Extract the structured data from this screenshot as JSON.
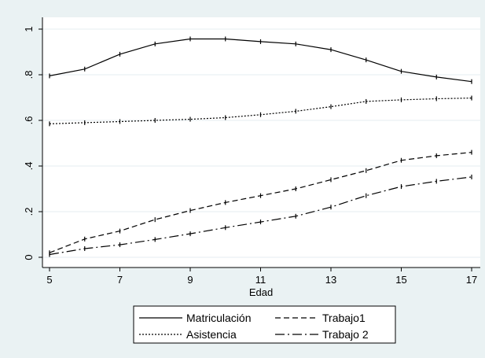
{
  "chart_data": {
    "type": "line",
    "title": "",
    "xlabel": "Edad",
    "ylabel": "",
    "xlim": [
      5,
      17
    ],
    "ylim": [
      0,
      1
    ],
    "x_ticks": [
      "5",
      "7",
      "9",
      "11",
      "13",
      "15",
      "17"
    ],
    "y_ticks": [
      "0",
      ".2",
      ".4",
      ".6",
      ".8",
      "1"
    ],
    "grid": "horizontal",
    "legend_position": "bottom",
    "x": [
      5,
      6,
      7,
      8,
      9,
      10,
      11,
      12,
      13,
      14,
      15,
      16,
      17
    ],
    "series": [
      {
        "name": "Matriculación",
        "dash": "solid",
        "values": [
          0.795,
          0.825,
          0.89,
          0.935,
          0.957,
          0.957,
          0.945,
          0.935,
          0.91,
          0.865,
          0.815,
          0.79,
          0.77
        ]
      },
      {
        "name": "Trabajo1",
        "dash": "dashed",
        "values": [
          0.02,
          0.08,
          0.115,
          0.165,
          0.205,
          0.24,
          0.27,
          0.3,
          0.34,
          0.38,
          0.425,
          0.445,
          0.46
        ]
      },
      {
        "name": "Asistencia",
        "dash": "dotted",
        "values": [
          0.585,
          0.59,
          0.595,
          0.6,
          0.605,
          0.612,
          0.625,
          0.64,
          0.66,
          0.683,
          0.69,
          0.695,
          0.698
        ]
      },
      {
        "name": "Trabajo 2",
        "dash": "longdash-dot",
        "values": [
          0.012,
          0.038,
          0.055,
          0.078,
          0.103,
          0.13,
          0.155,
          0.18,
          0.22,
          0.27,
          0.31,
          0.333,
          0.352
        ]
      }
    ]
  }
}
